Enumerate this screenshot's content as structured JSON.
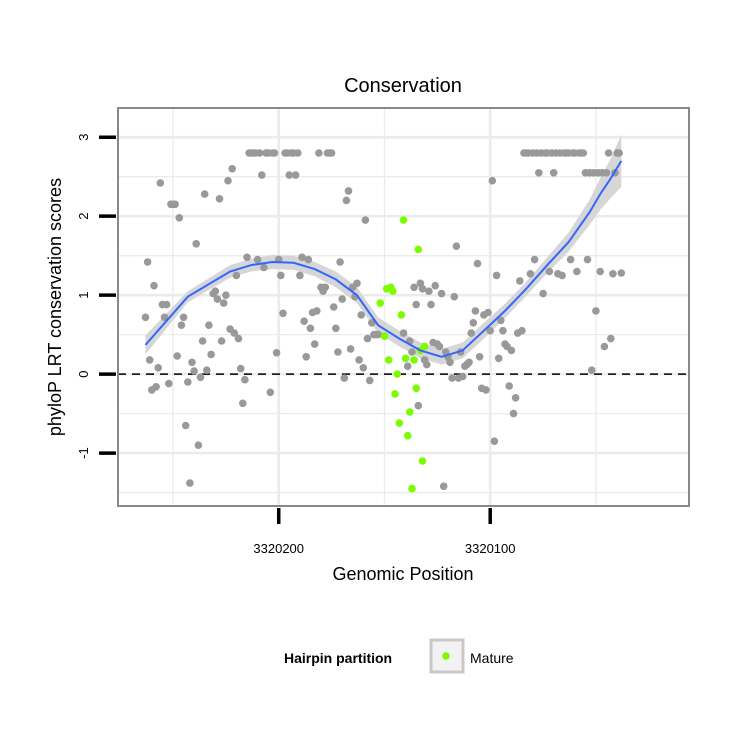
{
  "chart_data": {
    "type": "scatter",
    "title": "Conservation",
    "xlabel": "Genomic Position",
    "ylabel": "phyloP LRT conservation scores",
    "x_reversed": true,
    "xlim": [
      3320276,
      3320006
    ],
    "ylim": [
      -1.67,
      3.37
    ],
    "x_ticks": [
      3320200,
      3320100
    ],
    "x_tick_labels": [
      "3320200",
      "3320100"
    ],
    "y_ticks": [
      -1,
      0,
      1,
      2,
      3
    ],
    "y_tick_labels": [
      "-1",
      "0",
      "1",
      "2",
      "3"
    ],
    "grid": true,
    "reference_line": {
      "y": 0,
      "style": "dashed"
    },
    "legend": {
      "position": "bottom",
      "title": "Hairpin partition",
      "entries": [
        {
          "label": "Mature",
          "color": "#7cfc00"
        }
      ]
    },
    "colors": {
      "other_points": "#999999",
      "mature_points": "#7cfc00",
      "smooth_line": "#3366ff",
      "confidence_band": "#d6d6d6",
      "panel_border": "#888888",
      "grid": "#ebebeb"
    },
    "series": [
      {
        "points": [
          [
            3320263,
            0.72
          ],
          [
            3320262,
            1.42
          ],
          [
            3320261,
            0.18
          ],
          [
            3320260,
            -0.2
          ],
          [
            3320259,
            1.12
          ],
          [
            3320258,
            -0.16
          ],
          [
            3320257,
            0.08
          ],
          [
            3320256,
            2.42
          ],
          [
            3320255,
            0.88
          ],
          [
            3320254,
            0.72
          ],
          [
            3320253,
            0.88
          ],
          [
            3320252,
            -0.12
          ],
          [
            3320251,
            2.15
          ],
          [
            3320250,
            2.15
          ],
          [
            3320249,
            2.15
          ],
          [
            3320248,
            0.23
          ],
          [
            3320247,
            1.98
          ],
          [
            3320246,
            0.62
          ],
          [
            3320245,
            0.72
          ],
          [
            3320244,
            -0.65
          ],
          [
            3320243,
            -0.1
          ],
          [
            3320242,
            -1.38
          ],
          [
            3320241,
            0.15
          ],
          [
            3320240,
            0.04
          ],
          [
            3320239,
            1.65
          ],
          [
            3320238,
            -0.9
          ],
          [
            3320237,
            -0.04
          ],
          [
            3320236,
            0.42
          ],
          [
            3320235,
            2.28
          ],
          [
            3320234,
            0.05
          ],
          [
            3320233,
            0.62
          ],
          [
            3320232,
            0.25
          ],
          [
            3320231,
            1.02
          ],
          [
            3320230,
            1.05
          ],
          [
            3320229,
            0.95
          ],
          [
            3320228,
            2.22
          ],
          [
            3320227,
            0.42
          ],
          [
            3320226,
            0.9
          ],
          [
            3320225,
            1.0
          ],
          [
            3320224,
            2.45
          ],
          [
            3320223,
            0.57
          ],
          [
            3320222,
            2.6
          ],
          [
            3320221,
            0.52
          ],
          [
            3320220,
            1.25
          ],
          [
            3320219,
            0.45
          ],
          [
            3320218,
            0.07
          ],
          [
            3320217,
            -0.37
          ],
          [
            3320216,
            -0.07
          ],
          [
            3320215,
            1.48
          ],
          [
            3320214,
            2.8
          ],
          [
            3320213,
            2.8
          ],
          [
            3320212,
            2.8
          ],
          [
            3320211,
            2.8
          ],
          [
            3320210,
            1.45
          ],
          [
            3320209,
            2.8
          ],
          [
            3320208,
            2.52
          ],
          [
            3320207,
            1.35
          ],
          [
            3320206,
            2.8
          ],
          [
            3320205,
            2.8
          ],
          [
            3320204,
            -0.23
          ],
          [
            3320203,
            2.8
          ],
          [
            3320202,
            2.8
          ],
          [
            3320201,
            0.27
          ],
          [
            3320200,
            1.45
          ],
          [
            3320199,
            1.25
          ],
          [
            3320198,
            0.77
          ],
          [
            3320197,
            2.8
          ],
          [
            3320196,
            2.8
          ],
          [
            3320195,
            2.52
          ],
          [
            3320194,
            2.8
          ],
          [
            3320193,
            2.8
          ],
          [
            3320192,
            2.52
          ],
          [
            3320191,
            2.8
          ],
          [
            3320190,
            1.25
          ],
          [
            3320189,
            1.48
          ],
          [
            3320188,
            0.67
          ],
          [
            3320187,
            0.22
          ],
          [
            3320186,
            1.45
          ],
          [
            3320185,
            0.58
          ],
          [
            3320184,
            0.78
          ],
          [
            3320183,
            0.38
          ],
          [
            3320182,
            0.8
          ],
          [
            3320181,
            2.8
          ],
          [
            3320180,
            1.1
          ],
          [
            3320179,
            1.05
          ],
          [
            3320178,
            1.1
          ],
          [
            3320177,
            2.8
          ],
          [
            3320176,
            2.8
          ],
          [
            3320175,
            2.8
          ],
          [
            3320174,
            0.85
          ],
          [
            3320173,
            0.58
          ],
          [
            3320172,
            0.28
          ],
          [
            3320171,
            1.42
          ],
          [
            3320170,
            0.95
          ],
          [
            3320169,
            -0.05
          ],
          [
            3320168,
            2.2
          ],
          [
            3320167,
            2.32
          ],
          [
            3320166,
            0.32
          ],
          [
            3320165,
            1.1
          ],
          [
            3320164,
            0.98
          ],
          [
            3320163,
            1.15
          ],
          [
            3320162,
            0.18
          ],
          [
            3320161,
            0.75
          ],
          [
            3320160,
            0.08
          ],
          [
            3320159,
            1.95
          ],
          [
            3320158,
            0.45
          ],
          [
            3320157,
            -0.08
          ],
          [
            3320156,
            0.65
          ],
          [
            3320155,
            0.5
          ],
          [
            3320154,
            0.5
          ],
          [
            3320153,
            0.5
          ],
          [
            3320141,
            0.52
          ],
          [
            3320139,
            0.1
          ],
          [
            3320138,
            0.42
          ],
          [
            3320137,
            0.28
          ],
          [
            3320136,
            1.1
          ],
          [
            3320135,
            0.88
          ],
          [
            3320134,
            -0.4
          ],
          [
            3320133,
            1.15
          ],
          [
            3320132,
            1.08
          ],
          [
            3320131,
            0.18
          ],
          [
            3320130,
            0.12
          ],
          [
            3320129,
            1.05
          ],
          [
            3320128,
            0.88
          ],
          [
            3320127,
            0.4
          ],
          [
            3320126,
            1.12
          ],
          [
            3320125,
            0.38
          ],
          [
            3320124,
            0.35
          ],
          [
            3320123,
            1.02
          ],
          [
            3320122,
            -1.42
          ],
          [
            3320121,
            0.28
          ],
          [
            3320120,
            0.22
          ],
          [
            3320119,
            0.15
          ],
          [
            3320118,
            -0.05
          ],
          [
            3320117,
            0.98
          ],
          [
            3320116,
            1.62
          ],
          [
            3320115,
            -0.05
          ],
          [
            3320114,
            0.28
          ],
          [
            3320113,
            -0.03
          ],
          [
            3320112,
            0.1
          ],
          [
            3320111,
            0.12
          ],
          [
            3320110,
            0.15
          ],
          [
            3320109,
            0.52
          ],
          [
            3320108,
            0.65
          ],
          [
            3320107,
            0.8
          ],
          [
            3320106,
            1.4
          ],
          [
            3320105,
            0.22
          ],
          [
            3320104,
            -0.18
          ],
          [
            3320103,
            0.75
          ],
          [
            3320102,
            -0.2
          ],
          [
            3320101,
            0.78
          ],
          [
            3320100,
            0.55
          ],
          [
            3320099,
            2.45
          ],
          [
            3320098,
            -0.85
          ],
          [
            3320097,
            1.25
          ],
          [
            3320096,
            0.2
          ],
          [
            3320095,
            0.68
          ],
          [
            3320094,
            0.55
          ],
          [
            3320093,
            0.38
          ],
          [
            3320092,
            0.35
          ],
          [
            3320091,
            -0.15
          ],
          [
            3320090,
            0.3
          ],
          [
            3320089,
            -0.5
          ],
          [
            3320088,
            -0.3
          ],
          [
            3320087,
            0.52
          ],
          [
            3320086,
            1.18
          ],
          [
            3320085,
            0.55
          ],
          [
            3320084,
            2.8
          ],
          [
            3320083,
            2.8
          ],
          [
            3320082,
            2.8
          ],
          [
            3320081,
            1.27
          ],
          [
            3320080,
            2.8
          ],
          [
            3320079,
            1.45
          ],
          [
            3320078,
            2.8
          ],
          [
            3320077,
            2.55
          ],
          [
            3320076,
            2.8
          ],
          [
            3320075,
            1.02
          ],
          [
            3320074,
            2.8
          ],
          [
            3320073,
            2.8
          ],
          [
            3320072,
            1.3
          ],
          [
            3320071,
            2.8
          ],
          [
            3320070,
            2.55
          ],
          [
            3320069,
            2.8
          ],
          [
            3320068,
            1.27
          ],
          [
            3320067,
            2.8
          ],
          [
            3320066,
            1.25
          ],
          [
            3320065,
            2.8
          ],
          [
            3320064,
            2.8
          ],
          [
            3320063,
            2.8
          ],
          [
            3320062,
            1.45
          ],
          [
            3320061,
            2.8
          ],
          [
            3320060,
            2.8
          ],
          [
            3320059,
            1.3
          ],
          [
            3320058,
            2.8
          ],
          [
            3320057,
            2.8
          ],
          [
            3320056,
            2.8
          ],
          [
            3320055,
            2.55
          ],
          [
            3320054,
            1.45
          ],
          [
            3320053,
            2.55
          ],
          [
            3320052,
            0.05
          ],
          [
            3320051,
            2.55
          ],
          [
            3320050,
            0.8
          ],
          [
            3320049,
            2.55
          ],
          [
            3320048,
            1.3
          ],
          [
            3320047,
            2.55
          ],
          [
            3320046,
            0.35
          ],
          [
            3320045,
            2.55
          ],
          [
            3320044,
            2.8
          ],
          [
            3320043,
            0.45
          ],
          [
            3320042,
            1.27
          ],
          [
            3320041,
            2.55
          ],
          [
            3320040,
            2.8
          ],
          [
            3320039,
            2.8
          ],
          [
            3320038,
            1.28
          ]
        ]
      },
      {
        "name": "Mature",
        "points": [
          [
            3320152,
            0.9
          ],
          [
            3320150,
            0.48
          ],
          [
            3320149,
            1.08
          ],
          [
            3320148,
            0.18
          ],
          [
            3320147,
            1.1
          ],
          [
            3320146,
            1.05
          ],
          [
            3320145,
            -0.25
          ],
          [
            3320144,
            0.0
          ],
          [
            3320143,
            -0.62
          ],
          [
            3320142,
            0.75
          ],
          [
            3320141,
            1.95
          ],
          [
            3320140,
            0.2
          ],
          [
            3320139,
            -0.78
          ],
          [
            3320138,
            -0.48
          ],
          [
            3320137,
            -1.45
          ],
          [
            3320136,
            0.18
          ],
          [
            3320135,
            -0.18
          ],
          [
            3320134,
            1.58
          ],
          [
            3320133,
            0.3
          ],
          [
            3320132,
            -1.1
          ],
          [
            3320131,
            0.35
          ]
        ]
      }
    ],
    "smooth": {
      "x": [
        3320263,
        3320243,
        3320223,
        3320213,
        3320203,
        3320193,
        3320183,
        3320173,
        3320163,
        3320153,
        3320143,
        3320133,
        3320123,
        3320113,
        3320103,
        3320093,
        3320083,
        3320073,
        3320063,
        3320053,
        3320048,
        3320043,
        3320038
      ],
      "y": [
        0.37,
        0.98,
        1.3,
        1.38,
        1.42,
        1.41,
        1.33,
        1.2,
        1.0,
        0.62,
        0.45,
        0.3,
        0.22,
        0.3,
        0.55,
        0.8,
        1.08,
        1.38,
        1.67,
        2.05,
        2.28,
        2.48,
        2.7
      ],
      "se": [
        0.12,
        0.07,
        0.08,
        0.08,
        0.09,
        0.09,
        0.09,
        0.1,
        0.1,
        0.1,
        0.1,
        0.1,
        0.1,
        0.1,
        0.1,
        0.09,
        0.09,
        0.1,
        0.12,
        0.16,
        0.2,
        0.25,
        0.33
      ]
    }
  }
}
